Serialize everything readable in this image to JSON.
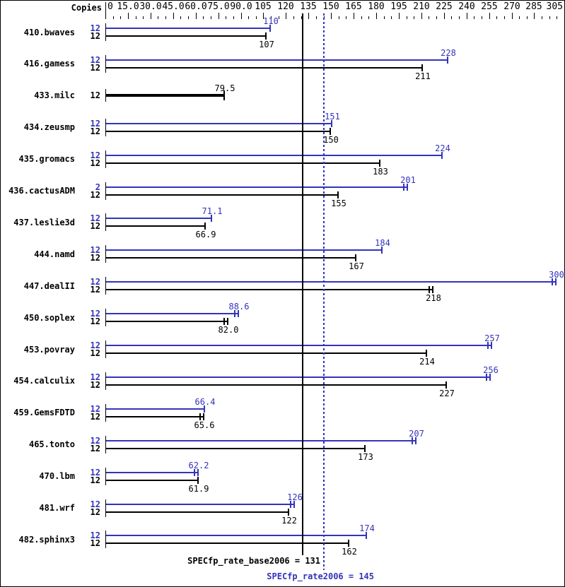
{
  "chart_data": {
    "type": "bar",
    "orientation": "horizontal",
    "copies_header": "Copies",
    "axis": {
      "xlim": [
        0,
        305
      ],
      "minor_tick_step": 5,
      "major_tick_step": 15,
      "grid": false,
      "tick_labels": [
        {
          "label": "0",
          "value": 0
        },
        {
          "label": "15.0",
          "value": 15
        },
        {
          "label": "30.0",
          "value": 30
        },
        {
          "label": "45.0",
          "value": 45
        },
        {
          "label": "60.0",
          "value": 60
        },
        {
          "label": "75.0",
          "value": 75
        },
        {
          "label": "90.0",
          "value": 90
        },
        {
          "label": "105",
          "value": 105
        },
        {
          "label": "120",
          "value": 120
        },
        {
          "label": "135",
          "value": 135
        },
        {
          "label": "150",
          "value": 150
        },
        {
          "label": "165",
          "value": 165
        },
        {
          "label": "180",
          "value": 180
        },
        {
          "label": "195",
          "value": 195
        },
        {
          "label": "210",
          "value": 210
        },
        {
          "label": "225",
          "value": 225
        },
        {
          "label": "240",
          "value": 240
        },
        {
          "label": "255",
          "value": 255
        },
        {
          "label": "270",
          "value": 270
        },
        {
          "label": "285",
          "value": 285
        },
        {
          "label": "305",
          "value": 305
        }
      ]
    },
    "series_meta": {
      "peak": {
        "name": "SPECfp_rate2006 (peak)",
        "color": "#3333bb"
      },
      "base": {
        "name": "SPECfp_rate_base2006 (base)",
        "color": "#000000"
      }
    },
    "benchmarks": [
      {
        "name": "410.bwaves",
        "peak": {
          "copies": "12",
          "value": 110,
          "label": "110",
          "double_tick": false
        },
        "base": {
          "copies": "12",
          "value": 107,
          "label": "107",
          "double_tick": false
        }
      },
      {
        "name": "416.gamess",
        "peak": {
          "copies": "12",
          "value": 228,
          "label": "228",
          "double_tick": false
        },
        "base": {
          "copies": "12",
          "value": 211,
          "label": "211",
          "double_tick": false
        }
      },
      {
        "name": "433.milc",
        "peak": null,
        "base": {
          "copies": "12",
          "value": 79.5,
          "label": "79.5",
          "double_tick": false,
          "thick": true
        }
      },
      {
        "name": "434.zeusmp",
        "peak": {
          "copies": "12",
          "value": 151,
          "label": "151",
          "double_tick": false
        },
        "base": {
          "copies": "12",
          "value": 150,
          "label": "150",
          "double_tick": false
        }
      },
      {
        "name": "435.gromacs",
        "peak": {
          "copies": "12",
          "value": 224,
          "label": "224",
          "double_tick": false
        },
        "base": {
          "copies": "12",
          "value": 183,
          "label": "183",
          "double_tick": false
        }
      },
      {
        "name": "436.cactusADM",
        "peak": {
          "copies": "2",
          "value": 201,
          "label": "201",
          "double_tick": true
        },
        "base": {
          "copies": "12",
          "value": 155,
          "label": "155",
          "double_tick": false
        }
      },
      {
        "name": "437.leslie3d",
        "peak": {
          "copies": "12",
          "value": 71.1,
          "label": "71.1",
          "double_tick": false
        },
        "base": {
          "copies": "12",
          "value": 66.9,
          "label": "66.9",
          "double_tick": false
        }
      },
      {
        "name": "444.namd",
        "peak": {
          "copies": "12",
          "value": 184,
          "label": "184",
          "double_tick": false
        },
        "base": {
          "copies": "12",
          "value": 167,
          "label": "167",
          "double_tick": false
        }
      },
      {
        "name": "447.dealII",
        "peak": {
          "copies": "12",
          "value": 300,
          "label": "300",
          "double_tick": true
        },
        "base": {
          "copies": "12",
          "value": 218,
          "label": "218",
          "double_tick": true
        }
      },
      {
        "name": "450.soplex",
        "peak": {
          "copies": "12",
          "value": 88.6,
          "label": "88.6",
          "double_tick": true
        },
        "base": {
          "copies": "12",
          "value": 82.0,
          "label": "82.0",
          "double_tick": true
        }
      },
      {
        "name": "453.povray",
        "peak": {
          "copies": "12",
          "value": 257,
          "label": "257",
          "double_tick": true
        },
        "base": {
          "copies": "12",
          "value": 214,
          "label": "214",
          "double_tick": false
        }
      },
      {
        "name": "454.calculix",
        "peak": {
          "copies": "12",
          "value": 256,
          "label": "256",
          "double_tick": true
        },
        "base": {
          "copies": "12",
          "value": 227,
          "label": "227",
          "double_tick": false
        }
      },
      {
        "name": "459.GemsFDTD",
        "peak": {
          "copies": "12",
          "value": 66.4,
          "label": "66.4",
          "double_tick": false
        },
        "base": {
          "copies": "12",
          "value": 65.6,
          "label": "65.6",
          "double_tick": true
        }
      },
      {
        "name": "465.tonto",
        "peak": {
          "copies": "12",
          "value": 207,
          "label": "207",
          "double_tick": true
        },
        "base": {
          "copies": "12",
          "value": 173,
          "label": "173",
          "double_tick": false
        }
      },
      {
        "name": "470.lbm",
        "peak": {
          "copies": "12",
          "value": 62.2,
          "label": "62.2",
          "double_tick": true
        },
        "base": {
          "copies": "12",
          "value": 61.9,
          "label": "61.9",
          "double_tick": false
        }
      },
      {
        "name": "481.wrf",
        "peak": {
          "copies": "12",
          "value": 126,
          "label": "126",
          "double_tick": true
        },
        "base": {
          "copies": "12",
          "value": 122,
          "label": "122",
          "double_tick": false
        }
      },
      {
        "name": "482.sphinx3",
        "peak": {
          "copies": "12",
          "value": 174,
          "label": "174",
          "double_tick": false
        },
        "base": {
          "copies": "12",
          "value": 162,
          "label": "162",
          "double_tick": false
        }
      }
    ],
    "reference_lines": [
      {
        "id": "base",
        "label": "SPECfp_rate_base2006 = 131",
        "value": 131,
        "color": "#000000",
        "style": "solid"
      },
      {
        "id": "peak",
        "label": "SPECfp_rate2006 = 145",
        "value": 145,
        "color": "#3333bb",
        "style": "dotted"
      }
    ]
  }
}
